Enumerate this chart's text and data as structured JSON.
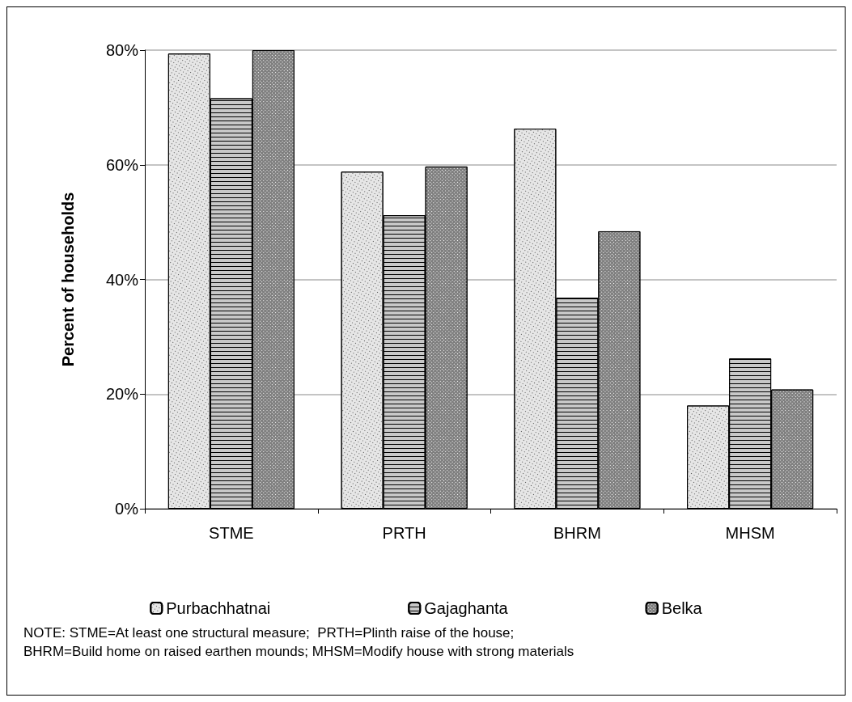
{
  "chart_data": {
    "type": "bar",
    "ylabel": "Percent of households",
    "categories": [
      "STME",
      "PRTH",
      "BHRM",
      "MHSM"
    ],
    "series": [
      {
        "name": "Purbachhatnai",
        "color": "#e6e6e6",
        "values": [
          79.4,
          58.8,
          66.3,
          18.0
        ]
      },
      {
        "name": "Gajaghanta",
        "color": "#c8c8c8",
        "values": [
          71.6,
          51.2,
          36.8,
          26.2
        ]
      },
      {
        "name": "Belka",
        "color": "#7f7f7f",
        "values": [
          80.0,
          59.7,
          48.4,
          20.8
        ]
      }
    ],
    "ylim": [
      0,
      80
    ],
    "yticks": [
      {
        "value": 0,
        "label": "0%"
      },
      {
        "value": 20,
        "label": "20%"
      },
      {
        "value": 40,
        "label": "40%"
      },
      {
        "value": 60,
        "label": "60%"
      },
      {
        "value": 80,
        "label": "80%"
      }
    ],
    "grid": "y",
    "legend": "bottom",
    "annotations": [
      "NOTE: STME=At least one structural measure;  PRTH=Plinth raise of the house;",
      "BHRM=Build home on raised earthen mounds; MHSM=Modify house with strong materials"
    ]
  }
}
